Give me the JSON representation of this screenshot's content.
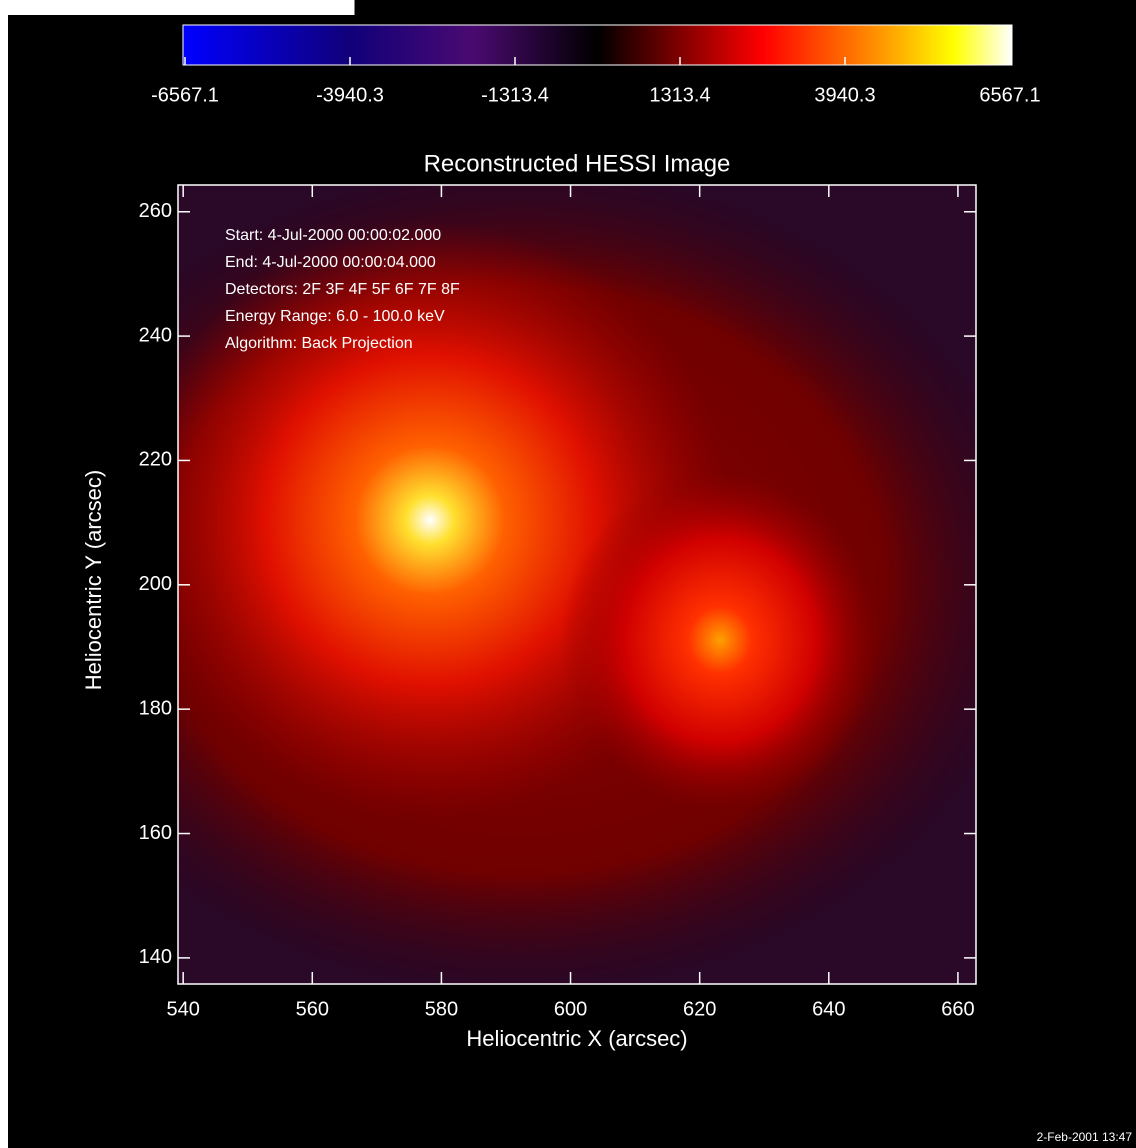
{
  "chart_data": {
    "type": "image",
    "title": "Reconstructed HESSI Image",
    "x_label": "Heliocentric X (arcsec)",
    "y_label": "Heliocentric Y (arcsec)",
    "annotations": [
      "Start:  4-Jul-2000 00:00:02.000",
      "End:    4-Jul-2000 00:00:04.000",
      "Detectors: 2F 3F 4F 5F 6F 7F 8F",
      "Energy Range: 6.0 - 100.0 keV",
      "Algorithm: Back Projection"
    ],
    "xlim": [
      539.2,
      662.8
    ],
    "xticks": [
      540,
      560,
      580,
      600,
      620,
      640,
      660
    ],
    "ylim": [
      135.8,
      264.3
    ],
    "yticks": [
      140,
      160,
      180,
      200,
      220,
      240,
      260
    ],
    "colorbar": {
      "lim": [
        -6567.1,
        6567.1
      ],
      "ticks": [
        -6567.1,
        -3940.3,
        -1313.4,
        1313.4,
        3940.3,
        6567.1
      ]
    },
    "timestamp": "2-Feb-2001 13:47"
  }
}
